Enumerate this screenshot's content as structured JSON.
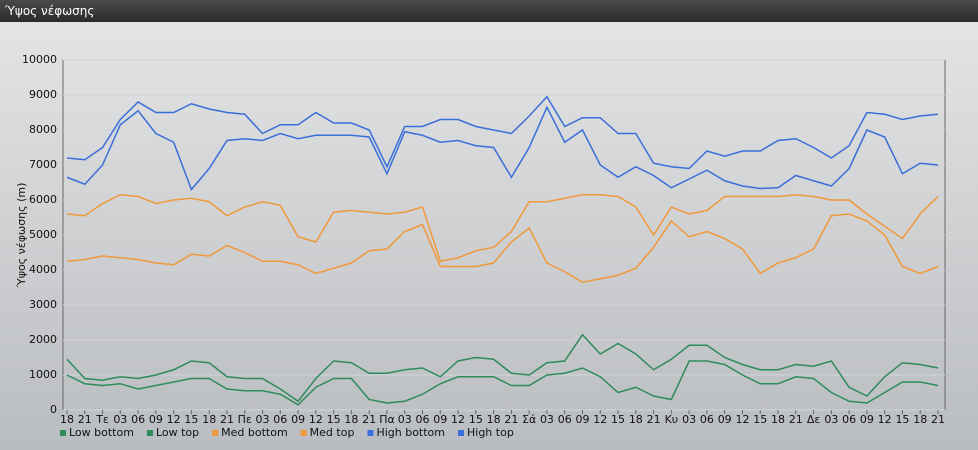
{
  "window_title": "Ύψος νέφωσης",
  "chart_data": {
    "type": "line",
    "ylabel": "Ύψος νέφωσης (m)",
    "categories": [
      "18",
      "21",
      "Τε",
      "03",
      "06",
      "09",
      "12",
      "15",
      "18",
      "21",
      "Πε",
      "03",
      "06",
      "09",
      "12",
      "15",
      "18",
      "21",
      "Πα",
      "03",
      "06",
      "09",
      "12",
      "15",
      "18",
      "21",
      "Σά",
      "03",
      "06",
      "09",
      "12",
      "15",
      "18",
      "21",
      "Κυ",
      "03",
      "06",
      "09",
      "12",
      "15",
      "18",
      "21",
      "Δε",
      "03",
      "06",
      "09",
      "12",
      "15",
      "18",
      "21"
    ],
    "ylim": [
      0,
      10000
    ],
    "yticks": [
      0,
      1000,
      2000,
      3000,
      4000,
      5000,
      6000,
      7000,
      8000,
      9000,
      10000
    ],
    "grid": true,
    "series": [
      {
        "name": "Low bottom",
        "color": "#2e8b5a",
        "values": [
          1000,
          750,
          700,
          750,
          600,
          700,
          800,
          900,
          900,
          600,
          550,
          550,
          450,
          150,
          650,
          900,
          900,
          300,
          200,
          250,
          450,
          750,
          950,
          950,
          950,
          700,
          700,
          1000,
          1050,
          1200,
          950,
          500,
          650,
          400,
          300,
          1400,
          1400,
          1300,
          1000,
          750,
          750,
          950,
          900,
          500,
          250,
          200,
          500,
          800,
          800,
          700
        ]
      },
      {
        "name": "Low top",
        "color": "#2e8b5a",
        "values": [
          1450,
          900,
          850,
          950,
          900,
          1000,
          1150,
          1400,
          1350,
          950,
          900,
          900,
          600,
          250,
          900,
          1400,
          1350,
          1050,
          1050,
          1150,
          1200,
          950,
          1400,
          1500,
          1450,
          1050,
          1000,
          1350,
          1400,
          2150,
          1600,
          1900,
          1600,
          1150,
          1450,
          1850,
          1850,
          1500,
          1300,
          1150,
          1150,
          1300,
          1250,
          1400,
          650,
          400,
          950,
          1350,
          1300,
          1200
        ]
      },
      {
        "name": "Med bottom",
        "color": "#f0983a",
        "values": [
          4250,
          4300,
          4400,
          4350,
          4300,
          4200,
          4150,
          4450,
          4400,
          4700,
          4500,
          4250,
          4250,
          4150,
          3900,
          4050,
          4200,
          4550,
          4600,
          5100,
          5300,
          4100,
          4100,
          4100,
          4200,
          4800,
          5200,
          4200,
          3950,
          3650,
          3750,
          3850,
          4050,
          4650,
          5400,
          4950,
          5100,
          4900,
          4600,
          3900,
          4200,
          4350,
          4600,
          5550,
          5600,
          5400,
          5000,
          4100,
          3900,
          4100
        ]
      },
      {
        "name": "Med top",
        "color": "#f0983a",
        "values": [
          5600,
          5550,
          5900,
          6150,
          6100,
          5900,
          6000,
          6050,
          5950,
          5550,
          5800,
          5950,
          5850,
          4950,
          4800,
          5650,
          5700,
          5650,
          5600,
          5650,
          5800,
          4250,
          4350,
          4550,
          4650,
          5100,
          5950,
          5950,
          6050,
          6150,
          6150,
          6100,
          5800,
          5000,
          5800,
          5600,
          5700,
          6100,
          6100,
          6100,
          6100,
          6150,
          6100,
          6000,
          6000,
          5600,
          5250,
          4900,
          5600,
          6100
        ]
      },
      {
        "name": "High bottom",
        "color": "#3a6ed8",
        "values": [
          6650,
          6450,
          7000,
          8150,
          8550,
          7900,
          7650,
          6300,
          6900,
          7700,
          7750,
          7700,
          7900,
          7750,
          7850,
          7850,
          7850,
          7800,
          6750,
          7950,
          7850,
          7650,
          7700,
          7550,
          7500,
          6650,
          7500,
          8650,
          7650,
          8000,
          7000,
          6650,
          6950,
          6700,
          6350,
          6600,
          6850,
          6550,
          6400,
          6330,
          6350,
          6700,
          6550,
          6400,
          6900,
          8000,
          7800,
          6750,
          7050,
          7000
        ]
      },
      {
        "name": "High top",
        "color": "#3a6ed8",
        "values": [
          7200,
          7150,
          7500,
          8300,
          8800,
          8500,
          8500,
          8750,
          8600,
          8500,
          8450,
          7900,
          8150,
          8150,
          8500,
          8200,
          8200,
          8000,
          6950,
          8100,
          8100,
          8300,
          8300,
          8100,
          8000,
          7900,
          8400,
          8950,
          8100,
          8350,
          8350,
          7900,
          7900,
          7050,
          6950,
          6900,
          7400,
          7250,
          7400,
          7400,
          7700,
          7750,
          7500,
          7200,
          7550,
          8500,
          8450,
          8300,
          8400,
          8450
        ]
      }
    ]
  }
}
